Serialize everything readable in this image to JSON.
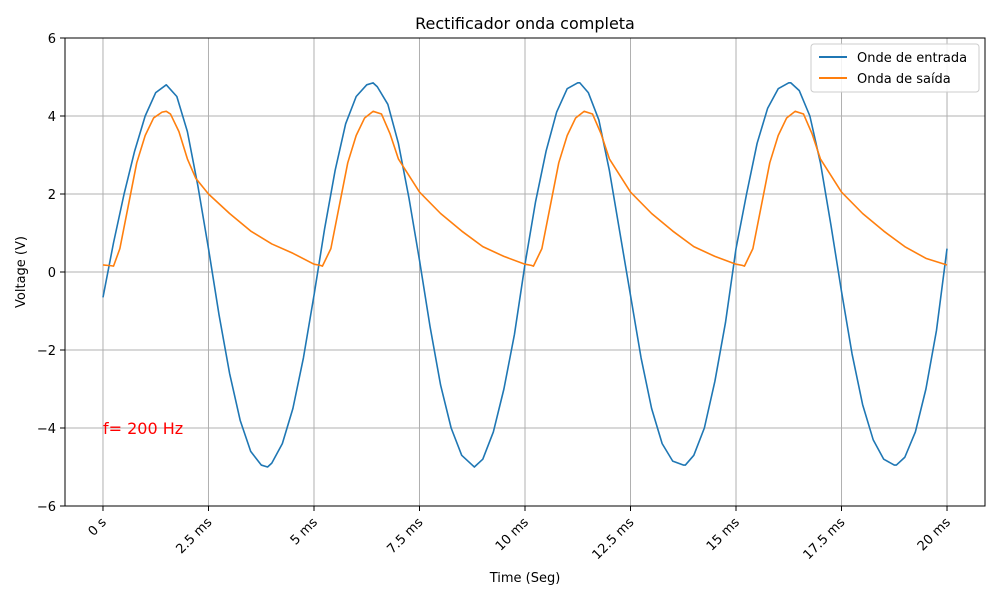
{
  "chart_data": {
    "type": "line",
    "title": "Rectificador onda completa",
    "xlabel": "Time (Seg)",
    "ylabel": "Voltage (V)",
    "xlim": [
      -0.0009,
      0.0209
    ],
    "ylim": [
      -6,
      6
    ],
    "grid": true,
    "legend_position": "top-right",
    "x_ticks": [
      0,
      0.0025,
      0.005,
      0.0075,
      0.01,
      0.0125,
      0.015,
      0.0175,
      0.02
    ],
    "x_tick_labels": [
      "0 s",
      "2.5 ms",
      "5 ms",
      "7.5 ms",
      "10 ms",
      "12.5 ms",
      "15 ms",
      "17.5 ms",
      "20 ms"
    ],
    "y_ticks": [
      -6,
      -4,
      -2,
      0,
      2,
      4,
      6
    ],
    "y_tick_labels": [
      "−6",
      "−4",
      "−2",
      "0",
      "2",
      "4",
      "6"
    ],
    "annotation": {
      "text": "f= 200 Hz",
      "x": 0,
      "y": -4,
      "color": "#ff0000"
    },
    "series": [
      {
        "name": "Onde de entrada",
        "color": "#1f77b4",
        "x": [
          0,
          0.00025,
          0.0005,
          0.00075,
          0.001,
          0.00125,
          0.0015,
          0.00175,
          0.002,
          0.00225,
          0.0025,
          0.00275,
          0.003,
          0.00325,
          0.0035,
          0.00375,
          0.0039,
          0.004,
          0.00425,
          0.0045,
          0.00475,
          0.005,
          0.00525,
          0.0055,
          0.00575,
          0.006,
          0.00625,
          0.0064,
          0.0065,
          0.00675,
          0.007,
          0.00725,
          0.0075,
          0.00775,
          0.008,
          0.00825,
          0.0085,
          0.00875,
          0.0088,
          0.009,
          0.00925,
          0.0095,
          0.00975,
          0.01,
          0.01025,
          0.0105,
          0.01075,
          0.011,
          0.01125,
          0.0113,
          0.0115,
          0.01175,
          0.012,
          0.01225,
          0.0125,
          0.01275,
          0.013,
          0.01325,
          0.0135,
          0.01375,
          0.0138,
          0.014,
          0.01425,
          0.0145,
          0.01475,
          0.015,
          0.01525,
          0.0155,
          0.01575,
          0.016,
          0.01625,
          0.0163,
          0.0165,
          0.01675,
          0.017,
          0.01725,
          0.0175,
          0.01775,
          0.018,
          0.01825,
          0.0185,
          0.01875,
          0.0188,
          0.019,
          0.01925,
          0.0195,
          0.01975,
          0.02
        ],
        "y": [
          -0.65,
          0.75,
          2.0,
          3.1,
          4.0,
          4.6,
          4.8,
          4.5,
          3.6,
          2.2,
          0.6,
          -1.1,
          -2.6,
          -3.8,
          -4.6,
          -4.95,
          -5.0,
          -4.9,
          -4.4,
          -3.5,
          -2.2,
          -0.6,
          1.1,
          2.6,
          3.8,
          4.5,
          4.8,
          4.85,
          4.75,
          4.3,
          3.3,
          1.9,
          0.3,
          -1.4,
          -2.9,
          -4.0,
          -4.7,
          -4.95,
          -5.0,
          -4.8,
          -4.1,
          -3.0,
          -1.6,
          0.2,
          1.8,
          3.1,
          4.1,
          4.7,
          4.85,
          4.85,
          4.6,
          3.9,
          2.6,
          1.0,
          -0.6,
          -2.2,
          -3.5,
          -4.4,
          -4.85,
          -4.95,
          -4.95,
          -4.7,
          -4.0,
          -2.8,
          -1.3,
          0.6,
          2.0,
          3.3,
          4.2,
          4.7,
          4.85,
          4.85,
          4.65,
          4.0,
          2.8,
          1.2,
          -0.5,
          -2.1,
          -3.4,
          -4.3,
          -4.8,
          -4.95,
          -4.95,
          -4.75,
          -4.1,
          -3.0,
          -1.5,
          0.6
        ]
      },
      {
        "name": "Onda de saída",
        "color": "#ff7f0e",
        "x": [
          0,
          0.0001,
          0.0002,
          0.00025,
          0.0004,
          0.0006,
          0.0008,
          0.001,
          0.0012,
          0.0014,
          0.0015,
          0.0016,
          0.0018,
          0.002,
          0.0022,
          0.0025,
          0.003,
          0.0035,
          0.004,
          0.0045,
          0.005,
          0.00515,
          0.0052,
          0.0054,
          0.0056,
          0.0058,
          0.006,
          0.0062,
          0.0064,
          0.0066,
          0.0068,
          0.007,
          0.0075,
          0.008,
          0.0085,
          0.009,
          0.0095,
          0.01,
          0.01015,
          0.0102,
          0.0104,
          0.0106,
          0.0108,
          0.011,
          0.0112,
          0.0114,
          0.0116,
          0.0118,
          0.012,
          0.0125,
          0.013,
          0.0135,
          0.014,
          0.0145,
          0.015,
          0.01515,
          0.0152,
          0.0154,
          0.0156,
          0.0158,
          0.016,
          0.0162,
          0.0164,
          0.0166,
          0.0168,
          0.017,
          0.0175,
          0.018,
          0.0185,
          0.019,
          0.0195,
          0.02
        ],
        "y": [
          0.18,
          0.17,
          0.16,
          0.15,
          0.6,
          1.7,
          2.8,
          3.5,
          3.95,
          4.1,
          4.12,
          4.05,
          3.6,
          2.9,
          2.4,
          2.0,
          1.5,
          1.05,
          0.72,
          0.48,
          0.2,
          0.17,
          0.15,
          0.6,
          1.7,
          2.8,
          3.5,
          3.95,
          4.12,
          4.05,
          3.55,
          2.9,
          2.05,
          1.5,
          1.05,
          0.65,
          0.4,
          0.2,
          0.17,
          0.15,
          0.6,
          1.7,
          2.8,
          3.5,
          3.95,
          4.12,
          4.05,
          3.55,
          2.9,
          2.05,
          1.5,
          1.05,
          0.65,
          0.4,
          0.2,
          0.17,
          0.15,
          0.6,
          1.7,
          2.8,
          3.5,
          3.95,
          4.12,
          4.05,
          3.55,
          2.9,
          2.05,
          1.5,
          1.05,
          0.65,
          0.35,
          0.18
        ]
      }
    ]
  }
}
